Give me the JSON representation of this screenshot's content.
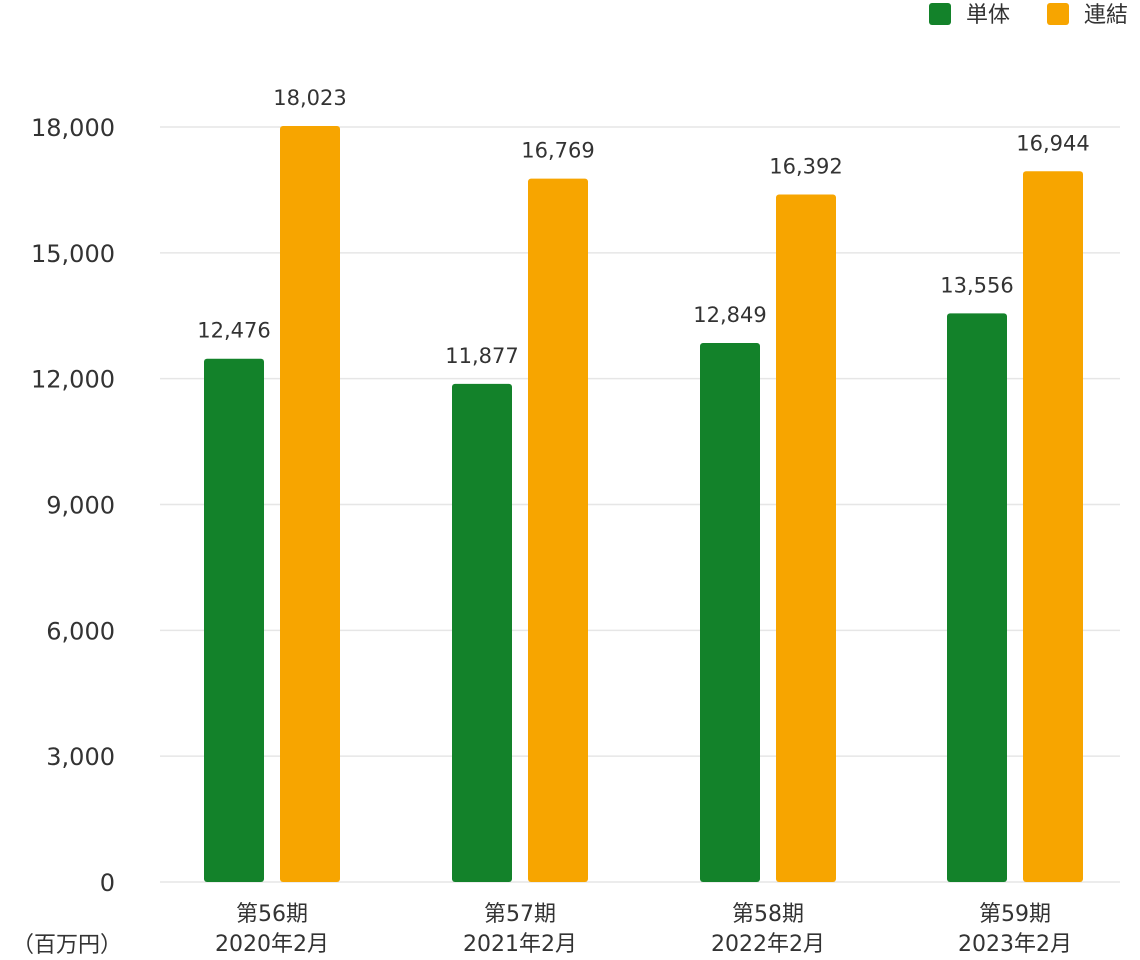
{
  "chart_data": {
    "type": "bar",
    "categories": [
      [
        "第56期",
        "2020年2月"
      ],
      [
        "第57期",
        "2021年2月"
      ],
      [
        "第58期",
        "2022年2月"
      ],
      [
        "第59期",
        "2023年2月"
      ]
    ],
    "series": [
      {
        "name": "単体",
        "color": "#13822a",
        "values": [
          12476,
          11877,
          12849,
          13556
        ],
        "labels": [
          "12,476",
          "11,877",
          "12,849",
          "13,556"
        ]
      },
      {
        "name": "連結",
        "color": "#f7a500",
        "values": [
          18023,
          16769,
          16392,
          16944
        ],
        "labels": [
          "18,023",
          "16,769",
          "16,392",
          "16,944"
        ]
      }
    ],
    "ylim": [
      0,
      18000
    ],
    "yticks": [
      0,
      3000,
      6000,
      9000,
      12000,
      15000,
      18000
    ],
    "ytick_labels": [
      "0",
      "3,000",
      "6,000",
      "9,000",
      "12,000",
      "15,000",
      "18,000"
    ],
    "unit_label": "（百万円）",
    "legend_position": "top-right",
    "grid": true
  }
}
